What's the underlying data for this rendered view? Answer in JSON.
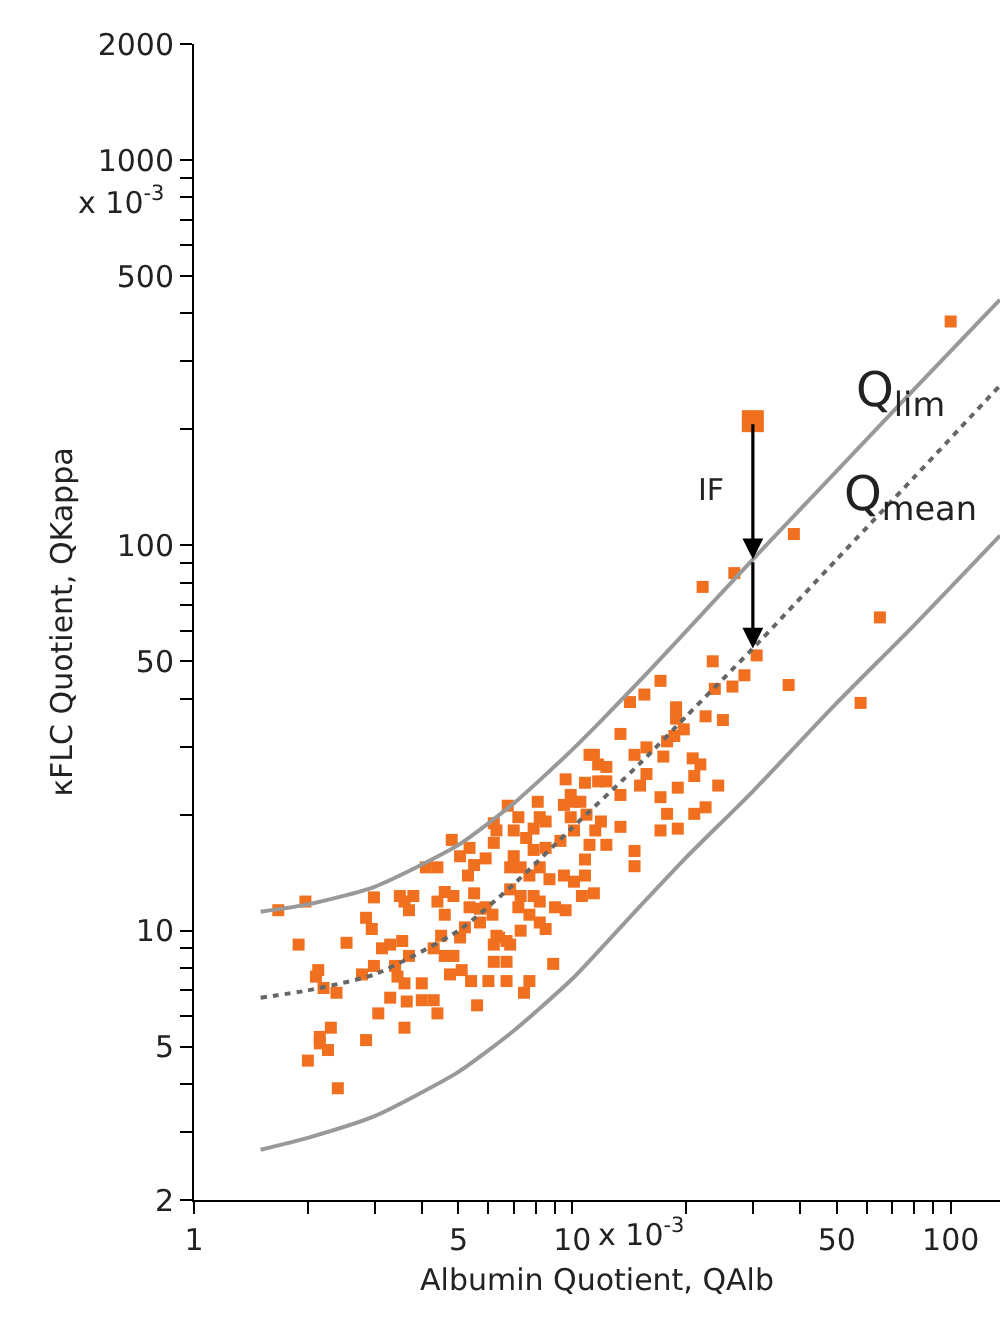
{
  "chart_data": {
    "type": "scatter",
    "xlabel": "Albumin Quotient, QAlb",
    "ylabel": "κFLC Quotient, QKappa",
    "log": "xy",
    "xlim": [
      1,
      135
    ],
    "ylim": [
      2,
      2000
    ],
    "xticks": [
      1,
      {
        "value": 2,
        "label": null
      },
      {
        "value": 3,
        "label": null
      },
      {
        "value": 4,
        "label": null
      },
      5,
      {
        "value": 6,
        "label": null
      },
      {
        "value": 7,
        "label": null
      },
      {
        "value": 8,
        "label": null
      },
      {
        "value": 9,
        "label": null
      },
      10,
      {
        "value": 20,
        "label": null
      },
      {
        "value": 30,
        "label": null
      },
      {
        "value": 40,
        "label": null
      },
      50,
      {
        "value": 60,
        "label": null
      },
      {
        "value": 70,
        "label": null
      },
      {
        "value": 80,
        "label": null
      },
      {
        "value": 90,
        "label": null
      },
      100
    ],
    "yticks": [
      2,
      {
        "value": 3,
        "label": null
      },
      {
        "value": 4,
        "label": null
      },
      5,
      {
        "value": 6,
        "label": null
      },
      {
        "value": 7,
        "label": null
      },
      {
        "value": 8,
        "label": null
      },
      {
        "value": 9,
        "label": null
      },
      10,
      {
        "value": 20,
        "label": null
      },
      {
        "value": 30,
        "label": null
      },
      {
        "value": 40,
        "label": null
      },
      50,
      {
        "value": 60,
        "label": null
      },
      {
        "value": 70,
        "label": null
      },
      {
        "value": 80,
        "label": null
      },
      {
        "value": 90,
        "label": null
      },
      100,
      {
        "value": 200,
        "label": null
      },
      {
        "value": 300,
        "label": null
      },
      {
        "value": 400,
        "label": null
      },
      500,
      {
        "value": 600,
        "label": null
      },
      {
        "value": 700,
        "label": null
      },
      {
        "value": 800,
        "label": null
      },
      {
        "value": 900,
        "label": null
      },
      1000,
      2000
    ],
    "annotations": [
      {
        "text": "Q$_{lim}$",
        "x": 74,
        "y": 250
      },
      {
        "text": "Q$_{mean}$",
        "x": 78,
        "y": 133
      },
      "IF",
      "x 10$^{-3}$",
      "x 10$^{-3}$"
    ],
    "series": [
      {
        "marker": "square",
        "color": "#f07020",
        "x": [
          1.67,
          1.97,
          1.89,
          2.53,
          2.13,
          2.1,
          2.2,
          2.38,
          2.3,
          2.15,
          2.15,
          2.26,
          2.0,
          2.4,
          2.85,
          2.78,
          2.99,
          2.99,
          2.85,
          2.95,
          3.14,
          3.07,
          3.3,
          3.6,
          3.4,
          3.5,
          3.8,
          3.6,
          3.7,
          3.3,
          3.55,
          3.7,
          3.45,
          4.0,
          3.6,
          3.65,
          4.0,
          4.3,
          4.4,
          4.1,
          4.4,
          4.8,
          4.6,
          4.85,
          4.4,
          4.6,
          4.5,
          4.3,
          4.6,
          4.85,
          5.05,
          5.2,
          5.1,
          4.75,
          5.4,
          6.0,
          5.6,
          5.05,
          5.35,
          5.5,
          5.3,
          5.5,
          5.35,
          5.7,
          5.9,
          5.7,
          6.15,
          6.3,
          6.2,
          6.7,
          6.2,
          5.9,
          6.2,
          6.3,
          6.2,
          6.75,
          7.2,
          7.0,
          7.55,
          7.9,
          8.2,
          8.5,
          8.1,
          9.6,
          9.9,
          10.5,
          11.1,
          11.7,
          10.9,
          10.1,
          9.3,
          8.5,
          7.9,
          7.0,
          6.85,
          7.3,
          7.7,
          8.2,
          8.7,
          9.5,
          10.1,
          10.8,
          11.4,
          10.6,
          9.6,
          9.0,
          8.2,
          7.9,
          7.3,
          6.85,
          7.2,
          7.7,
          8.2,
          8.5,
          7.3,
          6.85,
          6.7,
          8.9,
          7.7,
          7.45,
          6.7,
          6.4,
          11.1,
          11.5,
          10.8,
          11.7,
          10.8,
          10.1,
          9.5,
          9.9,
          38.5,
          26.8,
          22.1,
          30.7,
          23.5,
          28.5,
          26.5,
          37.3,
          23.8,
          17.1,
          14.2,
          15.5,
          18.8,
          22.5,
          25,
          18.8,
          19.7,
          18.6,
          17.8,
          13.4,
          15.7,
          14.6,
          17.4,
          20.8,
          21.8,
          21,
          24.3,
          19,
          15.7,
          15.1,
          17.1,
          17.8,
          21,
          22.5,
          19,
          17.1,
          13.4,
          12.3,
          11.4,
          12.3,
          14.6,
          14.6,
          12.3,
          13.4,
          11.9,
          100,
          65,
          57.8
        ],
        "values": [
          11.3,
          11.9,
          9.2,
          9.3,
          7.9,
          7.6,
          7.1,
          6.9,
          5.6,
          5.3,
          5.1,
          4.9,
          4.6,
          3.9,
          5.2,
          7.7,
          8.1,
          12.2,
          10.8,
          10.1,
          9.0,
          6.1,
          6.7,
          5.6,
          8.1,
          12.3,
          12.3,
          11.9,
          11.3,
          9.2,
          9.4,
          8.6,
          7.6,
          7.3,
          7.3,
          6.55,
          6.6,
          6.6,
          6.1,
          14.6,
          14.6,
          17.2,
          12.6,
          12.3,
          11.9,
          11.0,
          9.7,
          9.0,
          8.6,
          8.6,
          9.6,
          10.2,
          7.9,
          7.7,
          7.4,
          7.4,
          6.4,
          15.6,
          16.4,
          14.8,
          13.9,
          12.5,
          11.5,
          11.4,
          11.5,
          10.5,
          11.0,
          9.7,
          9.2,
          8.3,
          8.3,
          15.4,
          16.9,
          18.2,
          19.0,
          21.1,
          19.7,
          18.2,
          17.4,
          18.4,
          19.7,
          19.2,
          21.6,
          24.7,
          22.5,
          21.6,
          28.6,
          27,
          20,
          18.2,
          17.1,
          16.4,
          16.2,
          15.6,
          14.6,
          14.6,
          13.9,
          14.6,
          13.6,
          13.9,
          13.4,
          13.9,
          12.5,
          12.3,
          11.3,
          11.5,
          11.9,
          12.3,
          12.3,
          12.8,
          11.5,
          11.0,
          10.5,
          10.1,
          10.0,
          9.2,
          9.4,
          8.2,
          7.4,
          6.9,
          7.4,
          9.6,
          16.7,
          18.2,
          15.3,
          24.4,
          24.2,
          21.6,
          21.2,
          19.7,
          107,
          84.7,
          78,
          51.8,
          50,
          46,
          43,
          43.4,
          42.4,
          44.5,
          39.2,
          41,
          38,
          36,
          35.2,
          35.5,
          33.3,
          32,
          31,
          32.4,
          29.9,
          28.6,
          28.3,
          28,
          27,
          25.2,
          23.8,
          23.5,
          25.5,
          23.8,
          22.2,
          20.1,
          20.1,
          20.9,
          18.4,
          18.2,
          22.5,
          24.4,
          28.6,
          26.6,
          16.1,
          14.7,
          16.7,
          18.6,
          19.2,
          381,
          65,
          39
        ]
      },
      {
        "type": "scatter",
        "marker": "square",
        "color": "#f07020",
        "x": [
          30
        ],
        "values": [
          210
        ]
      },
      {
        "type": "line",
        "marker": "none",
        "line_style": "solid",
        "color": "#999999",
        "x": [
          1.5,
          2,
          3,
          5,
          7,
          10,
          15,
          20,
          30,
          50,
          80,
          135
        ],
        "values": [
          11.2,
          11.7,
          13,
          16.7,
          21.4,
          29.5,
          44.3,
          59.9,
          92,
          156,
          254,
          434
        ]
      },
      {
        "type": "line",
        "marker": "none",
        "line_style": "dotted",
        "color": "#666666",
        "x": [
          1.5,
          2,
          3,
          5,
          7,
          10,
          15,
          20,
          30,
          50,
          80,
          135
        ],
        "values": [
          6.7,
          7.0,
          7.7,
          10,
          13.2,
          18.5,
          27,
          36,
          54,
          92,
          150,
          260
        ]
      },
      {
        "type": "line",
        "marker": "none",
        "line_style": "solid",
        "color": "#999999",
        "x": [
          1.5,
          2,
          3,
          5,
          7,
          10,
          15,
          20,
          30,
          50,
          80,
          135
        ],
        "values": [
          2.7,
          2.9,
          3.3,
          4.3,
          5.5,
          7.5,
          11.5,
          15.5,
          23,
          39,
          62,
          106
        ]
      }
    ]
  }
}
